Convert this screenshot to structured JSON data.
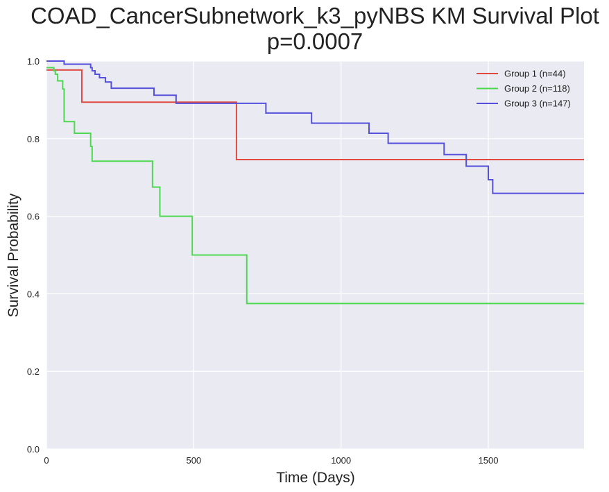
{
  "chart_data": {
    "type": "line",
    "title": "COAD_CancerSubnetwork_k3_pyNBS KM Survival Plot",
    "subtitle": "p=0.0007",
    "xlabel": "Time (Days)",
    "ylabel": "Survival Probability",
    "xlim": [
      0,
      1825
    ],
    "ylim": [
      0,
      1
    ],
    "xticks": [
      0,
      500,
      1000,
      1500
    ],
    "xtick_labels": [
      "0",
      "500",
      "1000",
      "1500"
    ],
    "yticks": [
      0,
      0.2,
      0.4,
      0.6,
      0.8,
      1.0
    ],
    "ytick_labels": [
      "0.0",
      "0.2",
      "0.4",
      "0.6",
      "0.8",
      "1.0"
    ],
    "grid": true,
    "legend_position": "top-right",
    "colors": {
      "plot_bg": "#eaeaf2",
      "grid": "#ffffff"
    },
    "series": [
      {
        "name": "Group 1 (n=44)",
        "color": "#e24a40",
        "x": [
          0,
          120,
          645,
          1825
        ],
        "y": [
          0.977,
          0.894,
          0.746,
          0.746
        ]
      },
      {
        "name": "Group 2 (n=118)",
        "color": "#4cd94f",
        "x": [
          0,
          25,
          30,
          38,
          55,
          60,
          95,
          150,
          155,
          360,
          385,
          495,
          680,
          1825
        ],
        "y": [
          0.983,
          0.975,
          0.966,
          0.949,
          0.928,
          0.844,
          0.814,
          0.78,
          0.742,
          0.675,
          0.6,
          0.5,
          0.375,
          0.375
        ]
      },
      {
        "name": "Group 3 (n=147)",
        "color": "#5450dc",
        "x": [
          0,
          60,
          150,
          155,
          165,
          180,
          200,
          220,
          365,
          440,
          745,
          900,
          1095,
          1160,
          1350,
          1425,
          1500,
          1515,
          1825
        ],
        "y": [
          1.0,
          0.992,
          0.983,
          0.975,
          0.966,
          0.957,
          0.946,
          0.93,
          0.912,
          0.891,
          0.866,
          0.84,
          0.814,
          0.788,
          0.759,
          0.729,
          0.694,
          0.659,
          0.659
        ]
      }
    ]
  }
}
